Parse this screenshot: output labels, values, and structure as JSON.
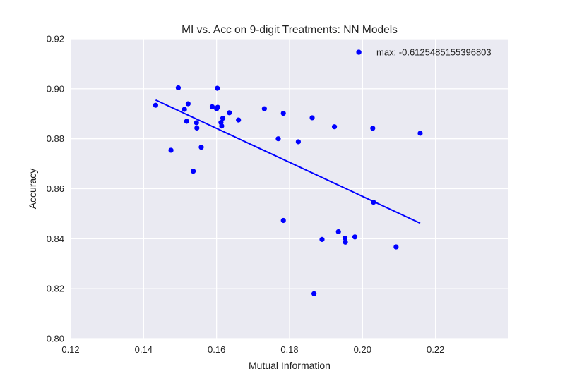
{
  "chart_data": {
    "type": "scatter",
    "title": "MI vs. Acc on 9-digit Treatments: NN Models",
    "xlabel": "Mutual Information",
    "ylabel": "Accuracy",
    "xlim": [
      0.12,
      0.24
    ],
    "ylim": [
      0.8,
      0.92
    ],
    "xticks": [
      0.12,
      0.14,
      0.16,
      0.18,
      0.2,
      0.22
    ],
    "yticks": [
      0.8,
      0.82,
      0.84,
      0.86,
      0.88,
      0.9,
      0.92
    ],
    "xtick_labels": [
      "0.12",
      "0.14",
      "0.16",
      "0.18",
      "0.20",
      "0.22"
    ],
    "ytick_labels": [
      "0.80",
      "0.82",
      "0.84",
      "0.86",
      "0.88",
      "0.90",
      "0.92"
    ],
    "grid": true,
    "background_color": "#eaeaf2",
    "point_color": "#0000ff",
    "line_color": "#0000ff",
    "legend": {
      "label": "max: -0.6125485155396803",
      "placement": "top-right"
    },
    "points": [
      {
        "x": 0.1433,
        "y": 0.8934
      },
      {
        "x": 0.1475,
        "y": 0.8754
      },
      {
        "x": 0.1495,
        "y": 0.9004
      },
      {
        "x": 0.1512,
        "y": 0.8918
      },
      {
        "x": 0.1518,
        "y": 0.887
      },
      {
        "x": 0.1522,
        "y": 0.894
      },
      {
        "x": 0.1536,
        "y": 0.867
      },
      {
        "x": 0.1545,
        "y": 0.8864
      },
      {
        "x": 0.1546,
        "y": 0.8843
      },
      {
        "x": 0.1558,
        "y": 0.8766
      },
      {
        "x": 0.1588,
        "y": 0.8928
      },
      {
        "x": 0.16,
        "y": 0.892
      },
      {
        "x": 0.1602,
        "y": 0.9002
      },
      {
        "x": 0.1603,
        "y": 0.8926
      },
      {
        "x": 0.1612,
        "y": 0.8865
      },
      {
        "x": 0.1614,
        "y": 0.8851
      },
      {
        "x": 0.1617,
        "y": 0.8882
      },
      {
        "x": 0.1635,
        "y": 0.8904
      },
      {
        "x": 0.166,
        "y": 0.8875
      },
      {
        "x": 0.1731,
        "y": 0.892
      },
      {
        "x": 0.1769,
        "y": 0.88
      },
      {
        "x": 0.1783,
        "y": 0.8473
      },
      {
        "x": 0.1783,
        "y": 0.8902
      },
      {
        "x": 0.1824,
        "y": 0.8788
      },
      {
        "x": 0.1862,
        "y": 0.8884
      },
      {
        "x": 0.1867,
        "y": 0.818
      },
      {
        "x": 0.1889,
        "y": 0.8397
      },
      {
        "x": 0.1923,
        "y": 0.8848
      },
      {
        "x": 0.1934,
        "y": 0.8428
      },
      {
        "x": 0.1952,
        "y": 0.8402
      },
      {
        "x": 0.1953,
        "y": 0.8386
      },
      {
        "x": 0.1979,
        "y": 0.8407
      },
      {
        "x": 0.199,
        "y": 0.9146
      },
      {
        "x": 0.2028,
        "y": 0.8842
      },
      {
        "x": 0.203,
        "y": 0.8546
      },
      {
        "x": 0.2092,
        "y": 0.8367
      },
      {
        "x": 0.2158,
        "y": 0.8822
      }
    ],
    "trend_line": {
      "x": [
        0.1433,
        0.2158
      ],
      "y": [
        0.8955,
        0.8462
      ]
    }
  }
}
